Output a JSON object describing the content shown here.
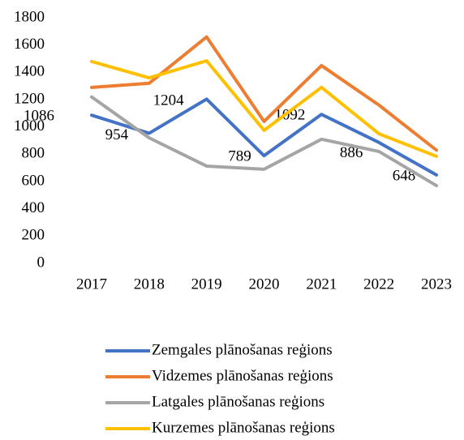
{
  "chart_data": {
    "type": "line",
    "categories": [
      "2017",
      "2018",
      "2019",
      "2020",
      "2021",
      "2022",
      "2023"
    ],
    "series": [
      {
        "name": "Zemgales plānošanas reģions",
        "color": "#4472c4",
        "values": [
          1086,
          954,
          1204,
          789,
          1092,
          886,
          648
        ],
        "data_labels": true
      },
      {
        "name": "Vidzemes plānošanas reģions",
        "color": "#ed7d31",
        "values": [
          1290,
          1320,
          1660,
          1040,
          1450,
          1160,
          830
        ]
      },
      {
        "name": "Latgales plānošanas reģions",
        "color": "#a5a5a5",
        "values": [
          1220,
          920,
          713,
          690,
          910,
          820,
          570
        ]
      },
      {
        "name": "Kurzemes plānošanas reģions",
        "color": "#ffc000",
        "values": [
          1480,
          1360,
          1485,
          975,
          1290,
          950,
          785
        ]
      }
    ],
    "ylim": [
      0,
      1800
    ],
    "yticks": [
      0,
      200,
      400,
      600,
      800,
      1000,
      1200,
      1400,
      1600,
      1800
    ],
    "legend": "bottom"
  }
}
